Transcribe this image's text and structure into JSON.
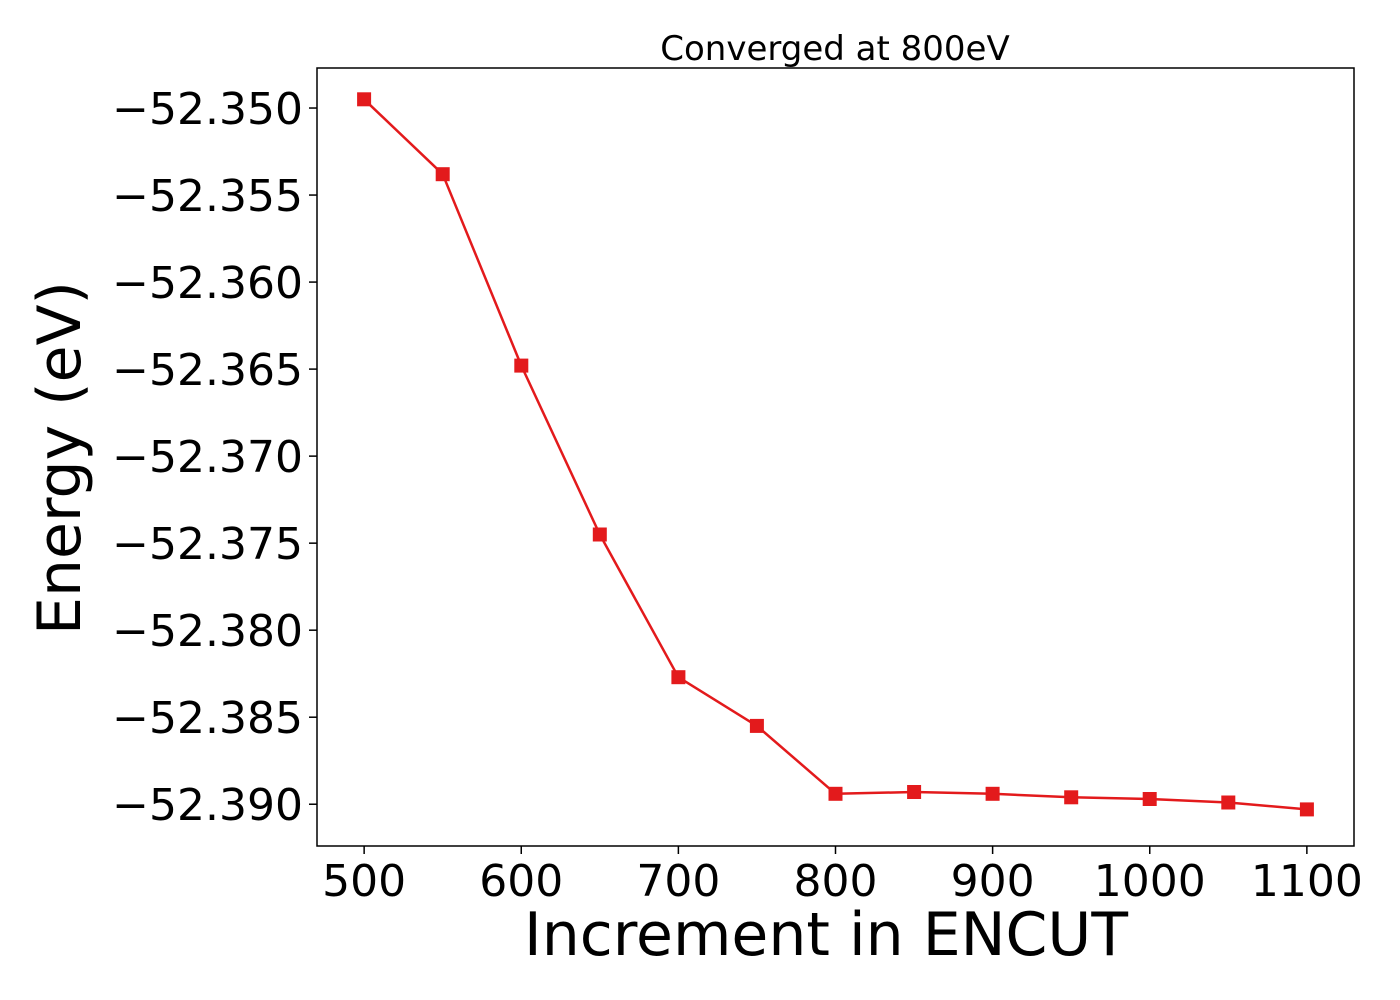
{
  "chart_data": {
    "type": "line",
    "title": "Converged at 800eV",
    "xlabel": "Increment in ENCUT",
    "ylabel": "Energy (eV)",
    "xlim": [
      470,
      1130
    ],
    "ylim": [
      -52.3924,
      -52.3477
    ],
    "x_ticks": [
      500,
      600,
      700,
      800,
      900,
      1000,
      1100
    ],
    "y_ticks": [
      -52.35,
      -52.355,
      -52.36,
      -52.365,
      -52.37,
      -52.375,
      -52.38,
      -52.385,
      -52.39
    ],
    "y_tick_labels": [
      "−52.350",
      "−52.355",
      "−52.360",
      "−52.365",
      "−52.370",
      "−52.375",
      "−52.380",
      "−52.385",
      "−52.390"
    ],
    "grid": false,
    "series": [
      {
        "color": "#e31a1c",
        "marker": "square",
        "x": [
          500,
          550,
          600,
          650,
          700,
          750,
          800,
          850,
          900,
          950,
          1000,
          1050,
          1100
        ],
        "y": [
          -52.3495,
          -52.3538,
          -52.3648,
          -52.3745,
          -52.3827,
          -52.3855,
          -52.3894,
          -52.3893,
          -52.3894,
          -52.3896,
          -52.3897,
          -52.3899,
          -52.3903
        ]
      }
    ]
  }
}
